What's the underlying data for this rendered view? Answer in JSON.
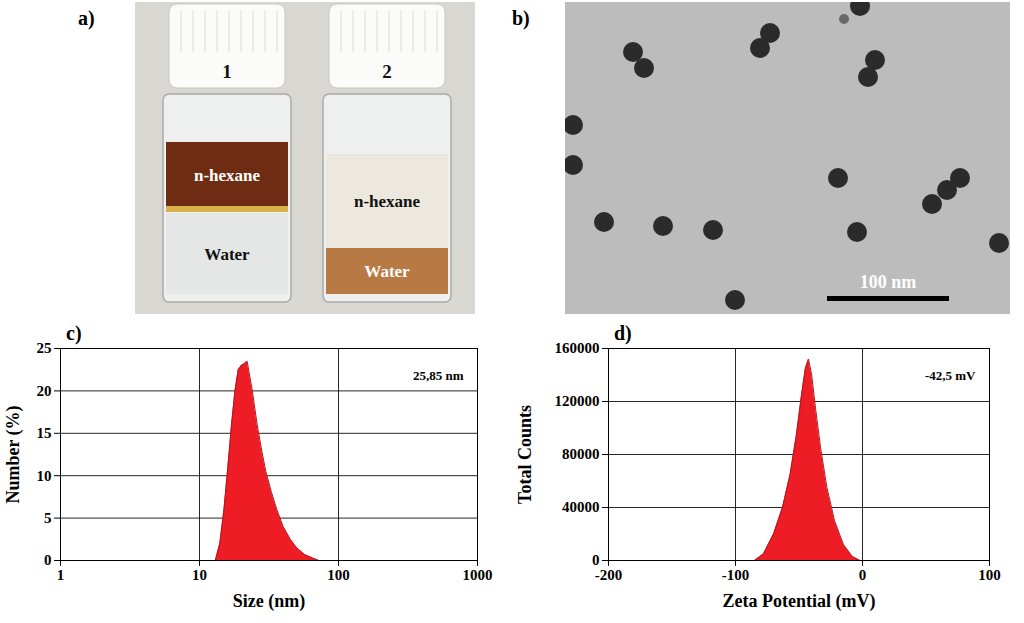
{
  "photo": {
    "panel_label": "a)",
    "vials": [
      {
        "label": "1",
        "layers": [
          {
            "name": "n-hexane",
            "color": "#6e2c12"
          },
          {
            "name": "Water",
            "color": "#e4e7e6"
          }
        ]
      },
      {
        "label": "2",
        "layers": [
          {
            "name": "n-hexane",
            "color": "#ece8e0"
          },
          {
            "name": "Water",
            "color": "#b87a45"
          }
        ]
      }
    ]
  },
  "micrograph": {
    "panel_label": "b)",
    "scale_bar": "100 nm"
  },
  "chart_data": [
    {
      "panel_label": "c)",
      "type": "area",
      "color": "#ee1c24",
      "log": "x",
      "grid": true,
      "x": [
        13,
        14,
        15,
        16,
        17,
        18,
        19,
        20,
        21,
        22,
        24,
        26,
        28,
        30,
        33,
        36,
        40,
        45,
        50,
        57,
        65,
        72
      ],
      "values": [
        0,
        2,
        6,
        11,
        16,
        20,
        22.5,
        23,
        23.2,
        23.5,
        20,
        16,
        13,
        10.5,
        8,
        6,
        4,
        2.5,
        1.5,
        0.7,
        0.3,
        0
      ],
      "xlim": [
        1,
        1000
      ],
      "xticks": [
        1,
        10,
        100,
        1000
      ],
      "ylim": [
        0,
        25
      ],
      "yticks": [
        0,
        5,
        10,
        15,
        20,
        25
      ],
      "xlabel": "Size (nm)",
      "ylabel": "Number (%)",
      "annotation": "25,85 nm"
    },
    {
      "panel_label": "d)",
      "type": "area",
      "color": "#ee1c24",
      "grid": true,
      "x": [
        -85,
        -78,
        -70,
        -63,
        -57,
        -52,
        -48,
        -45,
        -42.5,
        -40,
        -37,
        -33,
        -28,
        -22,
        -15,
        -8,
        -2
      ],
      "values": [
        0,
        5000,
        20000,
        40000,
        65000,
        95000,
        125000,
        145000,
        152000,
        140000,
        115000,
        85000,
        55000,
        30000,
        12000,
        3000,
        0
      ],
      "xlim": [
        -200,
        100
      ],
      "xticks": [
        -200,
        -100,
        0,
        100
      ],
      "ylim": [
        0,
        160000
      ],
      "yticks": [
        0,
        40000,
        80000,
        120000,
        160000
      ],
      "xlabel": "Zeta Potential (mV)",
      "ylabel": "Total Counts",
      "annotation": "-42,5 mV"
    }
  ]
}
